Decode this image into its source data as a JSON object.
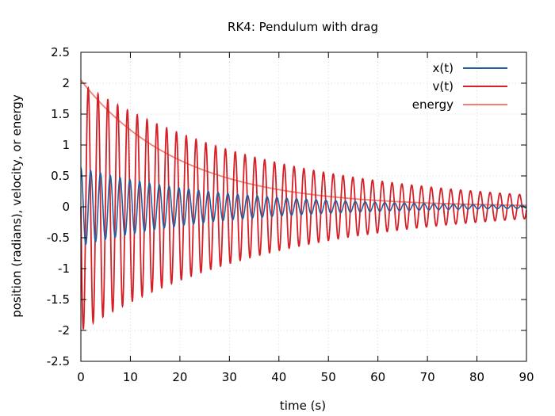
{
  "chart_data": {
    "type": "line",
    "title": "RK4: Pendulum with drag",
    "xlabel": "time (s)",
    "ylabel": "position (radians), velocity, or energy",
    "xlim": [
      0,
      90
    ],
    "ylim": [
      -2.5,
      2.5
    ],
    "x_ticks": [
      "0",
      "10",
      "20",
      "30",
      "40",
      "50",
      "60",
      "70",
      "80",
      "90"
    ],
    "y_ticks": [
      "2.5",
      "2",
      "1.5",
      "1",
      "0.5",
      "0",
      "-0.5",
      "-1",
      "-1.5",
      "-2",
      "-2.5"
    ],
    "grid": true,
    "legend_position": "top-right",
    "series": [
      {
        "name": "x(t)",
        "color": "#1f5fa0",
        "model": "damped oscillation",
        "amplitude_at_t0": 0.63,
        "decay_rate_per_s": 0.036,
        "period_s": 1.98,
        "phase": "cos"
      },
      {
        "name": "v(t)",
        "color": "#d62027",
        "model": "damped oscillation",
        "amplitude_at_t0": 2.0,
        "decay_rate_per_s": 0.026,
        "period_s": 1.98,
        "phase": "-sin"
      },
      {
        "name": "energy",
        "color": "#f08070",
        "model": "exponential decay",
        "value_at_t0": 2.05,
        "decay_rate_per_s": 0.05
      }
    ]
  }
}
